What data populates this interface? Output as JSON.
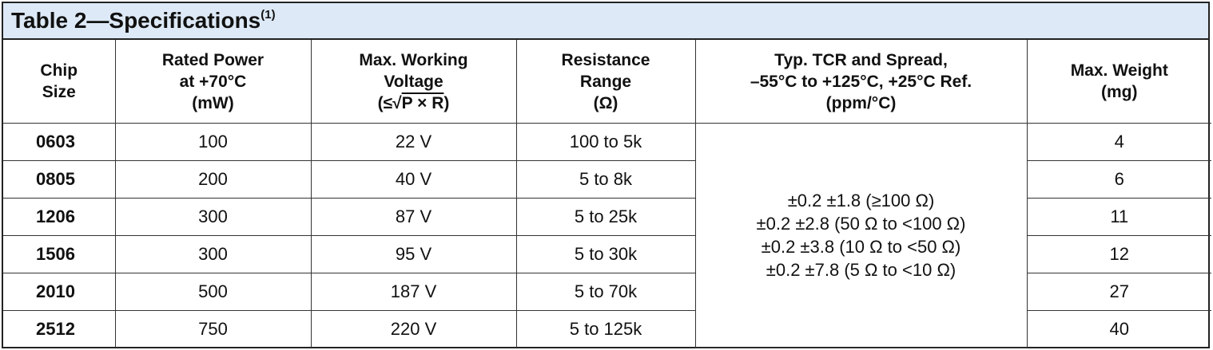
{
  "title": {
    "text": "Table 2—Specifications",
    "footnote": "(1)"
  },
  "headers": {
    "chip": [
      "Chip",
      "Size"
    ],
    "power": [
      "Rated Power",
      "at +70°C",
      "(mW)"
    ],
    "voltage": [
      "Max. Working",
      "Voltage",
      "(≤√",
      "P × R",
      ")"
    ],
    "resistance": [
      "Resistance",
      "Range",
      "(Ω)"
    ],
    "tcr": [
      "Typ. TCR and Spread,",
      "–55°C to +125°C, +25°C Ref.",
      "(ppm/°C)"
    ],
    "weight": [
      "Max. Weight",
      "(mg)"
    ]
  },
  "rows": [
    {
      "chip": "0603",
      "power": "100",
      "voltage": "22 V",
      "range": "100 to 5k",
      "weight": "4"
    },
    {
      "chip": "0805",
      "power": "200",
      "voltage": "40 V",
      "range": "5 to 8k",
      "weight": "6"
    },
    {
      "chip": "1206",
      "power": "300",
      "voltage": "87 V",
      "range": "5 to 25k",
      "weight": "11"
    },
    {
      "chip": "1506",
      "power": "300",
      "voltage": "95 V",
      "range": "5 to 30k",
      "weight": "12"
    },
    {
      "chip": "2010",
      "power": "500",
      "voltage": "187 V",
      "range": "5 to 70k",
      "weight": "27"
    },
    {
      "chip": "2512",
      "power": "750",
      "voltage": "220 V",
      "range": "5 to 125k",
      "weight": "40"
    }
  ],
  "tcr_values": [
    "±0.2 ±1.8 (≥100 Ω)",
    "±0.2 ±2.8 (50 Ω to <100 Ω)",
    "±0.2 ±3.8 (10 Ω to <50  Ω)",
    "±0.2 ±7.8 (5 Ω to <10 Ω)"
  ]
}
